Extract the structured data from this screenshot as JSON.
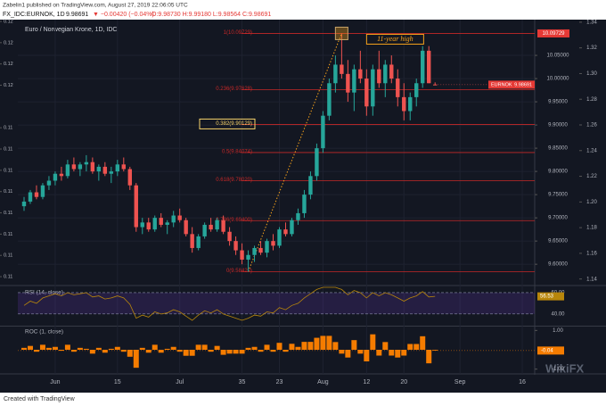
{
  "header": {
    "publisher": "Zabelin1 published on TradingView.com, August 27, 2019 22:06:05 UTC",
    "symbol": "FX_IDC:EURNOK, 1D",
    "last": "9.98691",
    "change": "▼ −0.00420 (−0.04%)",
    "ohlc": "O:9.98730 H:9.99180 L:9.98564 C:9.98691"
  },
  "footer": "Created with TradingView",
  "watermark": "WikiFX",
  "chart_data": [
    {
      "type": "candlestick",
      "title": "Euro / Norwegian Krone, 1D, IDC",
      "open": [
        9.725,
        9.735,
        9.755,
        9.745,
        9.77,
        9.78,
        9.795,
        9.79,
        9.815,
        9.805,
        9.815,
        9.82,
        9.8,
        9.81,
        9.795,
        9.8,
        9.815,
        9.805,
        9.77,
        9.68,
        9.69,
        9.675,
        9.7,
        9.685,
        9.69,
        9.705,
        9.695,
        9.665,
        9.635,
        9.66,
        9.685,
        9.675,
        9.695,
        9.67,
        9.65,
        9.63,
        9.61,
        9.62,
        9.635,
        9.625,
        9.65,
        9.64,
        9.675,
        9.665,
        9.695,
        9.71,
        9.75,
        9.79,
        9.85,
        9.92,
        9.99,
        10.03,
        10.01,
        9.97,
        10.02,
        10.0,
        9.94,
        10.02,
        9.99,
        10.03,
        10.0,
        9.96,
        9.93,
        9.96,
        9.99,
        10.06,
        9.9873
      ],
      "high": [
        9.745,
        9.76,
        9.77,
        9.775,
        9.79,
        9.8,
        9.81,
        9.825,
        9.83,
        9.82,
        9.835,
        9.83,
        9.815,
        9.82,
        9.81,
        9.825,
        9.83,
        9.81,
        9.775,
        9.7,
        9.7,
        9.705,
        9.71,
        9.695,
        9.715,
        9.72,
        9.7,
        9.68,
        9.665,
        9.69,
        9.7,
        9.7,
        9.705,
        9.68,
        9.66,
        9.645,
        9.63,
        9.64,
        9.65,
        9.655,
        9.665,
        9.68,
        9.69,
        9.7,
        9.72,
        9.76,
        9.8,
        9.86,
        9.93,
        10.0,
        10.05,
        10.097,
        10.04,
        10.03,
        10.06,
        10.02,
        10.03,
        10.06,
        10.04,
        10.05,
        10.02,
        9.99,
        9.97,
        10.0,
        10.07,
        10.07,
        9.9918
      ],
      "low": [
        9.715,
        9.73,
        9.74,
        9.74,
        9.76,
        9.77,
        9.78,
        9.785,
        9.8,
        9.79,
        9.8,
        9.795,
        9.78,
        9.79,
        9.775,
        9.79,
        9.8,
        9.76,
        9.67,
        9.665,
        9.67,
        9.67,
        9.68,
        9.665,
        9.68,
        9.69,
        9.66,
        9.625,
        9.63,
        9.655,
        9.67,
        9.67,
        9.665,
        9.64,
        9.62,
        9.6,
        9.584,
        9.605,
        9.62,
        9.615,
        9.63,
        9.635,
        9.66,
        9.66,
        9.685,
        9.7,
        9.74,
        9.78,
        9.84,
        9.91,
        9.97,
        10.0,
        9.95,
        9.93,
        9.99,
        9.92,
        9.92,
        9.98,
        9.96,
        9.99,
        9.94,
        9.91,
        9.91,
        9.94,
        9.98,
        9.99,
        9.98564
      ],
      "close": [
        9.735,
        9.755,
        9.745,
        9.77,
        9.78,
        9.795,
        9.79,
        9.815,
        9.805,
        9.815,
        9.82,
        9.8,
        9.81,
        9.795,
        9.8,
        9.815,
        9.805,
        9.77,
        9.68,
        9.69,
        9.675,
        9.7,
        9.685,
        9.69,
        9.705,
        9.695,
        9.665,
        9.635,
        9.66,
        9.685,
        9.675,
        9.695,
        9.67,
        9.65,
        9.63,
        9.61,
        9.62,
        9.635,
        9.625,
        9.65,
        9.64,
        9.675,
        9.665,
        9.695,
        9.71,
        9.75,
        9.79,
        9.85,
        9.92,
        9.99,
        10.03,
        10.01,
        9.97,
        10.02,
        10.0,
        9.94,
        10.02,
        9.99,
        10.03,
        10.0,
        9.96,
        9.93,
        9.96,
        9.99,
        10.06,
        9.99,
        9.98691
      ],
      "up_color": "#26a69a",
      "down_color": "#ef5350",
      "xlim": [
        -1,
        82
      ],
      "xticks": [
        {
          "value": 5,
          "label": "Jun"
        },
        15,
        {
          "value": 25,
          "label": "Jul"
        },
        35,
        {
          "value": 41,
          "label": "23"
        },
        {
          "value": 48,
          "label": "Aug"
        },
        {
          "value": 55,
          "label": "12"
        },
        {
          "value": 61,
          "label": "20"
        },
        {
          "value": 70,
          "label": "Sep"
        },
        {
          "value": 80,
          "label": "16"
        }
      ],
      "ylim": [
        9.558,
        10.127
      ],
      "yticks": [
        {
          "value": 10.05,
          "label": "10.05000"
        },
        {
          "value": 10.0,
          "label": "10.00000"
        },
        {
          "value": 9.95,
          "label": "9.95000"
        },
        {
          "value": 9.9,
          "label": "9.90000"
        },
        {
          "value": 9.85,
          "label": "9.85000"
        },
        {
          "value": 9.8,
          "label": "9.80000"
        },
        {
          "value": 9.75,
          "label": "9.75000"
        },
        {
          "value": 9.7,
          "label": "9.70000"
        },
        {
          "value": 9.65,
          "label": "9.65000"
        },
        {
          "value": 9.6,
          "label": "9.60000"
        }
      ],
      "y2lim": [
        1.1363,
        1.342
      ],
      "y2ticks": [
        1.34,
        1.32,
        {
          "value": 1.3,
          "label": "1.30"
        },
        1.28,
        1.26,
        1.24,
        1.22,
        {
          "value": 1.2,
          "label": "1.20"
        },
        1.18,
        1.16,
        1.14
      ],
      "y3lim": [
        0.106,
        0.1209
      ],
      "y3ticks": [
        {
          "value": 0.1208,
          "label": "0.12"
        },
        {
          "value": 0.1196,
          "label": "0.12"
        },
        {
          "value": 0.1184,
          "label": "0.12"
        },
        {
          "value": 0.1172,
          "label": "0.12"
        },
        {
          "value": 0.1148,
          "label": "0.11"
        },
        {
          "value": 0.1136,
          "label": "0.11"
        },
        {
          "value": 0.1124,
          "label": "0.11"
        },
        {
          "value": 0.1112,
          "label": "0.11"
        },
        {
          "value": 0.11,
          "label": "0.11"
        },
        {
          "value": 0.1088,
          "label": "0.11"
        },
        {
          "value": 0.1076,
          "label": "0.11"
        },
        {
          "value": 0.1064,
          "label": "0.11"
        }
      ],
      "grid": true,
      "fib_levels": [
        {
          "value": 10.09729,
          "label": "1(10.09729)"
        },
        {
          "value": 9.97628,
          "label": "0.236(9.97628)"
        },
        {
          "value": 9.90129,
          "label": "0.382(9.90129)",
          "boxed": true
        },
        {
          "value": 9.84074,
          "label": "0.5(9.84074)"
        },
        {
          "value": 9.7802,
          "label": "0.618(9.78020)"
        },
        {
          "value": 9.694,
          "label": "0.786(9.69400)"
        },
        {
          "value": 9.5842,
          "label": "0(9.58420)"
        }
      ],
      "fib_color": "#c62828",
      "annotation": "11-year high",
      "annotation_color": "#f7a21b",
      "high_label": {
        "value": 10.09729,
        "label": "10.09729"
      },
      "last_label": "EURNOK"
    },
    {
      "type": "line",
      "title": "RSI (14, close)",
      "color": "#b8860b",
      "values": [
        48,
        52,
        50,
        55,
        57,
        59,
        57,
        60,
        58,
        59,
        60,
        56,
        57,
        54,
        55,
        57,
        55,
        49,
        36,
        39,
        37,
        42,
        40,
        41,
        44,
        42,
        38,
        34,
        39,
        43,
        41,
        44,
        40,
        38,
        36,
        34,
        36,
        39,
        38,
        42,
        41,
        46,
        44,
        48,
        50,
        55,
        59,
        63,
        65,
        65,
        65,
        63,
        58,
        62,
        60,
        55,
        60,
        57,
        60,
        58,
        55,
        52,
        55,
        57,
        61,
        56,
        56.53
      ],
      "ylim": [
        29,
        65
      ],
      "yticks": [
        {
          "value": 60,
          "label": "60.00"
        },
        {
          "value": 40,
          "label": "40.00"
        }
      ]
    },
    {
      "type": "bar",
      "title": "ROC (1, close)",
      "color": "#f57c00",
      "values": [
        0.1,
        0.2,
        -0.1,
        0.26,
        0.1,
        0.15,
        -0.05,
        0.26,
        -0.1,
        0.1,
        0.05,
        -0.2,
        0.1,
        -0.15,
        0.05,
        0.15,
        -0.1,
        -0.36,
        -0.93,
        0.1,
        -0.15,
        0.26,
        -0.15,
        0.05,
        0.15,
        -0.1,
        -0.31,
        -0.31,
        0.26,
        0.26,
        -0.1,
        0.2,
        -0.26,
        -0.2,
        -0.2,
        -0.2,
        0.1,
        0.15,
        -0.1,
        0.26,
        -0.1,
        0.36,
        -0.1,
        0.31,
        0.15,
        0.41,
        0.41,
        0.62,
        0.72,
        0.72,
        0.4,
        -0.2,
        -0.4,
        0.5,
        -0.2,
        -0.6,
        0.8,
        -0.3,
        0.4,
        -0.3,
        -0.4,
        -0.3,
        0.3,
        0.3,
        0.7,
        -0.7,
        -0.04
      ],
      "ylim": [
        -1.2,
        1.2
      ],
      "yticks": [
        {
          "value": 1,
          "label": "1.00"
        },
        {
          "value": -1,
          "label": "-1.00"
        }
      ]
    }
  ]
}
